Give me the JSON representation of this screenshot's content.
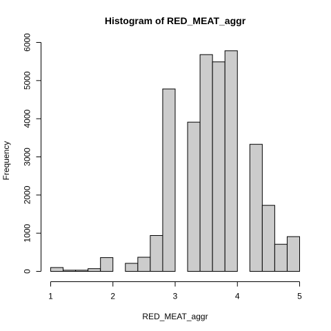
{
  "chart_data": {
    "type": "bar",
    "title": "Histogram of RED_MEAT_aggr",
    "xlabel": "RED_MEAT_aggr",
    "ylabel": "Frequency",
    "bin_edges": [
      1.0,
      1.2,
      1.4,
      1.6,
      1.8,
      2.0,
      2.2,
      2.4,
      2.6,
      2.8,
      3.0,
      3.2,
      3.4,
      3.6,
      3.8,
      4.0,
      4.2,
      4.4,
      4.6,
      4.8,
      5.0
    ],
    "values": [
      100,
      30,
      30,
      70,
      360,
      0,
      210,
      370,
      940,
      4780,
      0,
      3910,
      5680,
      5490,
      5780,
      0,
      3330,
      1730,
      710,
      910
    ],
    "xlim": [
      1,
      5
    ],
    "ylim": [
      0,
      6000
    ],
    "xticks": [
      1,
      2,
      3,
      4,
      5
    ],
    "yticks": [
      0,
      1000,
      2000,
      3000,
      4000,
      5000,
      6000
    ],
    "grid": false,
    "bar_color": "#cccccc",
    "edge_color": "#000000"
  }
}
